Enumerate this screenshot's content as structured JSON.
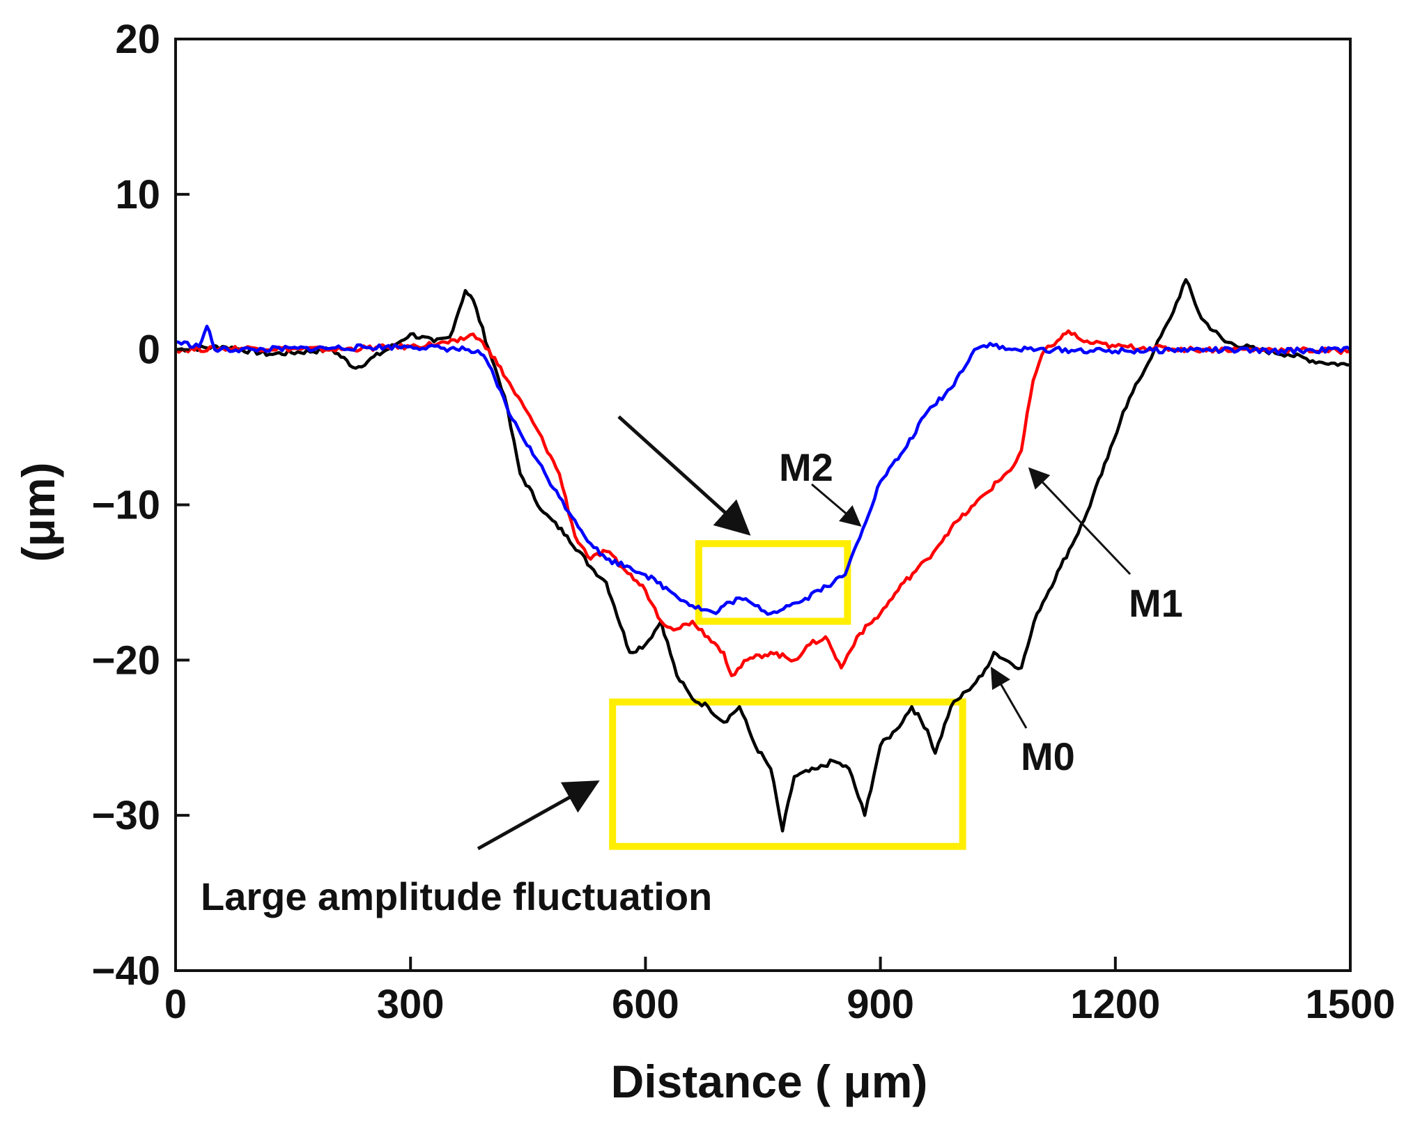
{
  "chart_data": {
    "type": "line",
    "title": "",
    "xlabel": "Distance ( μm)",
    "ylabel": "(μm)",
    "xlim": [
      0,
      1500
    ],
    "ylim": [
      -40,
      20
    ],
    "xticks": [
      0,
      300,
      600,
      900,
      1200,
      1500
    ],
    "yticks": [
      20,
      10,
      0,
      -10,
      -20,
      -30,
      -40
    ],
    "xtick_labels": [
      "0",
      "300",
      "600",
      "900",
      "1200",
      "1500"
    ],
    "ytick_labels": [
      "20",
      "10",
      "0",
      "−10",
      "−20",
      "−30",
      "−40"
    ],
    "grid": false,
    "series": [
      {
        "name": "M0",
        "color": "#000000",
        "x": [
          0,
          60,
          120,
          200,
          230,
          280,
          300,
          330,
          350,
          370,
          380,
          400,
          420,
          440,
          470,
          500,
          530,
          550,
          560,
          580,
          600,
          620,
          640,
          660,
          680,
          700,
          720,
          740,
          760,
          775,
          790,
          820,
          840,
          860,
          880,
          900,
          920,
          940,
          960,
          970,
          990,
          1010,
          1030,
          1045,
          1060,
          1080,
          1100,
          1130,
          1160,
          1190,
          1210,
          1230,
          1250,
          1270,
          1290,
          1310,
          1340,
          1380,
          1420,
          1460,
          1500
        ],
        "y": [
          0,
          0.2,
          -0.3,
          0,
          -1.2,
          0.3,
          1,
          0.5,
          0.8,
          3.8,
          3.2,
          0,
          -3,
          -8,
          -10.5,
          -12,
          -14,
          -15,
          -16.5,
          -19.5,
          -19,
          -17.5,
          -21,
          -22.5,
          -23,
          -24,
          -23,
          -25.5,
          -27,
          -31,
          -27.5,
          -27,
          -26.5,
          -27,
          -30,
          -25.5,
          -24.5,
          -23,
          -24.5,
          -26,
          -23,
          -22,
          -21,
          -19.5,
          -20,
          -20.5,
          -17,
          -14,
          -11,
          -7,
          -4,
          -2,
          0,
          2,
          4.5,
          2,
          0.5,
          0,
          -0.3,
          -0.8,
          -1
        ]
      },
      {
        "name": "M1",
        "color": "#ff0000",
        "x": [
          0,
          100,
          200,
          300,
          360,
          380,
          400,
          430,
          460,
          490,
          510,
          530,
          550,
          570,
          600,
          620,
          640,
          660,
          680,
          700,
          710,
          730,
          760,
          790,
          810,
          830,
          840,
          850,
          870,
          900,
          930,
          960,
          990,
          1020,
          1050,
          1070,
          1080,
          1095,
          1110,
          1130,
          1140,
          1160,
          1200,
          1300,
          1400,
          1500
        ],
        "y": [
          0,
          0.1,
          0,
          0.2,
          0.5,
          1,
          0,
          -2.5,
          -5,
          -8,
          -12,
          -13.5,
          -13,
          -14,
          -15.5,
          -17.5,
          -18,
          -17.5,
          -18.5,
          -19.5,
          -21,
          -20,
          -19.5,
          -20,
          -19,
          -18.5,
          -19.5,
          -20.5,
          -18.5,
          -17,
          -15,
          -13.5,
          -11.5,
          -10,
          -8.5,
          -7.5,
          -6.5,
          -2,
          0,
          0.7,
          1.2,
          0.5,
          0.2,
          0,
          0,
          -0.1
        ]
      },
      {
        "name": "M2",
        "color": "#0000ff",
        "x": [
          0,
          30,
          40,
          50,
          100,
          200,
          300,
          370,
          390,
          400,
          430,
          460,
          490,
          510,
          530,
          550,
          580,
          600,
          630,
          660,
          690,
          700,
          720,
          740,
          760,
          780,
          800,
          820,
          840,
          855,
          870,
          900,
          930,
          960,
          990,
          1020,
          1040,
          1060,
          1100,
          1200,
          1300,
          1400,
          1500
        ],
        "y": [
          0.5,
          0.2,
          1.5,
          0,
          0,
          0.1,
          0.2,
          0,
          -0.3,
          -1,
          -4.5,
          -7,
          -9.5,
          -11,
          -12.5,
          -13.5,
          -14,
          -14.5,
          -15.5,
          -16.5,
          -17,
          -16.5,
          -16,
          -16.5,
          -17,
          -16.5,
          -16.2,
          -15.5,
          -15,
          -14.5,
          -12.5,
          -8.5,
          -6.5,
          -4,
          -2.5,
          0,
          0.4,
          0,
          0,
          -0.1,
          0,
          -0.1,
          0
        ]
      }
    ],
    "annotations": [
      {
        "text": "M2",
        "target": [
          865,
          -12
        ]
      },
      {
        "text": "M1",
        "target": [
          1080,
          -8.5
        ]
      },
      {
        "text": "M0",
        "target": [
          1040,
          -20
        ]
      },
      {
        "text": "Large amplitude fluctuation",
        "target": [
          548,
          -28.5
        ]
      }
    ],
    "highlight_boxes": [
      {
        "name": "M2 highlight",
        "x": [
          668,
          858
        ],
        "y": [
          -17.5,
          -12.5
        ],
        "color": "#ffee00"
      },
      {
        "name": "M0 highlight",
        "x": [
          558,
          1005
        ],
        "y": [
          -32,
          -22.7
        ],
        "color": "#ffee00"
      }
    ]
  }
}
